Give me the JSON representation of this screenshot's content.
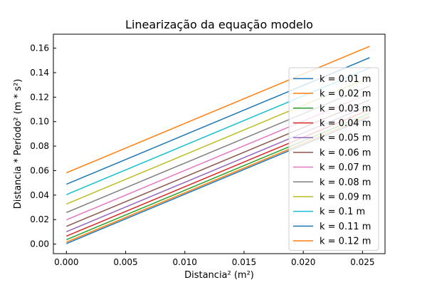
{
  "chart_data": {
    "type": "line",
    "title": "Linearização da equação modelo",
    "xlabel": "Distancia² (m²)",
    "ylabel": "Distancia * Período² (m * s²)",
    "xlim": [
      -0.0011,
      0.0269
    ],
    "ylim": [
      -0.0078,
      0.1714
    ],
    "xticks": [
      {
        "value": 0.0,
        "label": "0.000"
      },
      {
        "value": 0.005,
        "label": "0.005"
      },
      {
        "value": 0.01,
        "label": "0.010"
      },
      {
        "value": 0.015,
        "label": "0.015"
      },
      {
        "value": 0.02,
        "label": "0.020"
      },
      {
        "value": 0.025,
        "label": "0.025"
      }
    ],
    "yticks": [
      {
        "value": 0.0,
        "label": "0.00"
      },
      {
        "value": 0.02,
        "label": "0.02"
      },
      {
        "value": 0.04,
        "label": "0.04"
      },
      {
        "value": 0.06,
        "label": "0.06"
      },
      {
        "value": 0.08,
        "label": "0.08"
      },
      {
        "value": 0.1,
        "label": "0.10"
      },
      {
        "value": 0.12,
        "label": "0.12"
      },
      {
        "value": 0.14,
        "label": "0.14"
      },
      {
        "value": 0.16,
        "label": "0.16"
      }
    ],
    "grid": false,
    "legend_position": "right",
    "x": [
      0.0,
      0.0256
    ],
    "series": [
      {
        "name": "k = 0.01 m",
        "color": "#1f77b4",
        "values": [
          0.0004,
          0.1037
        ]
      },
      {
        "name": "k = 0.02 m",
        "color": "#ff7f0e",
        "values": [
          0.0016,
          0.1049
        ]
      },
      {
        "name": "k = 0.03 m",
        "color": "#2ca02c",
        "values": [
          0.0036,
          0.1069
        ]
      },
      {
        "name": "k = 0.04 m",
        "color": "#d62728",
        "values": [
          0.0065,
          0.1098
        ]
      },
      {
        "name": "k = 0.05 m",
        "color": "#9467bd",
        "values": [
          0.0101,
          0.1134
        ]
      },
      {
        "name": "k = 0.06 m",
        "color": "#8c564b",
        "values": [
          0.0145,
          0.1178
        ]
      },
      {
        "name": "k = 0.07 m",
        "color": "#e377c2",
        "values": [
          0.0198,
          0.1231
        ]
      },
      {
        "name": "k = 0.08 m",
        "color": "#7f7f7f",
        "values": [
          0.0258,
          0.1291
        ]
      },
      {
        "name": "k = 0.09 m",
        "color": "#bcbd22",
        "values": [
          0.0327,
          0.136
        ]
      },
      {
        "name": "k = 0.1 m",
        "color": "#17becf",
        "values": [
          0.0404,
          0.1437
        ]
      },
      {
        "name": "k = 0.11 m",
        "color": "#1f77b4",
        "values": [
          0.0489,
          0.1522
        ]
      },
      {
        "name": "k = 0.12 m",
        "color": "#ff7f0e",
        "values": [
          0.0582,
          0.1615
        ]
      }
    ]
  }
}
